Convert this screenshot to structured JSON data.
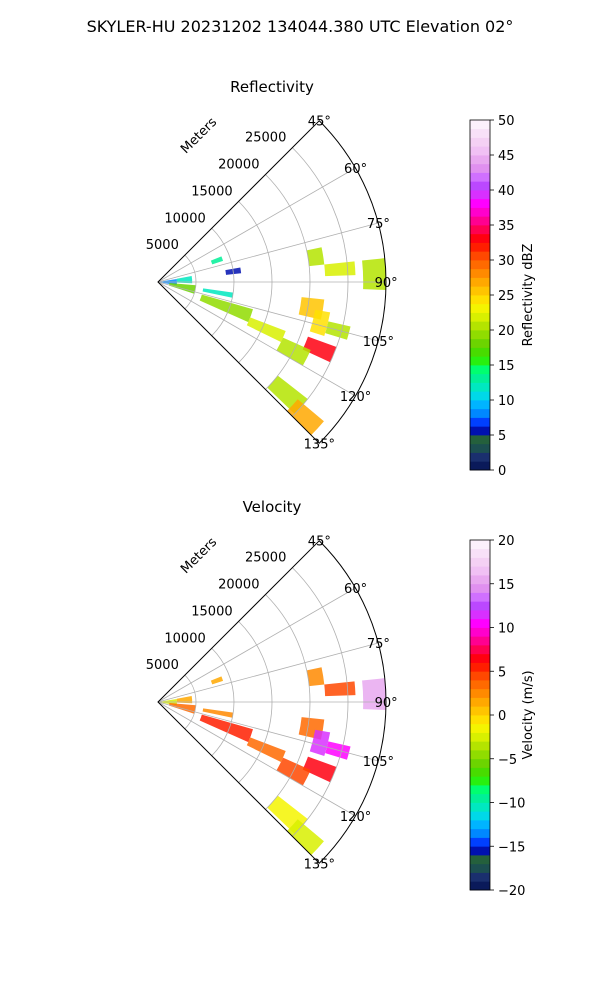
{
  "figure": {
    "suptitle": "SKYLER-HU  20231202  134044.380 UTC Elevation 02°"
  },
  "chart_data": [
    {
      "type": "polar_sector_radar",
      "title": "Reflectivity",
      "r_unit_label": "Meters",
      "r_ticks": [
        "5000",
        "10000",
        "15000",
        "20000",
        "25000"
      ],
      "theta_ticks": [
        "45°",
        "60°",
        "75°",
        "90°",
        "105°",
        "120°",
        "135°"
      ],
      "theta_range_deg": [
        45,
        135
      ],
      "r_range_m": [
        0,
        30000
      ],
      "grid": true,
      "colorbar": {
        "label": "Reflectivity dBZ",
        "range": [
          0,
          50
        ],
        "ticks": [
          "0",
          "5",
          "10",
          "15",
          "20",
          "25",
          "30",
          "35",
          "40",
          "45",
          "50"
        ],
        "colors": [
          "#0a1a5a",
          "#1a2f6e",
          "#1c4f50",
          "#24603c",
          "#0010b0",
          "#0040ff",
          "#0088ff",
          "#00b4ff",
          "#00d8e8",
          "#00e8c0",
          "#00f098",
          "#00ff70",
          "#28f010",
          "#48dc00",
          "#6cd400",
          "#90dc00",
          "#b4e400",
          "#d8f000",
          "#f4f400",
          "#ffe000",
          "#ffc400",
          "#ffa800",
          "#ff8a00",
          "#ff6a00",
          "#ff4800",
          "#ff1e00",
          "#ff0010",
          "#ff0050",
          "#ff0090",
          "#ff00cc",
          "#ff00ff",
          "#d830ff",
          "#bb48ff",
          "#d070ff",
          "#e090f0",
          "#e8a8f0",
          "#f0c0f4",
          "#f4d0f4",
          "#f8e0f8",
          "#fcf0fc"
        ]
      },
      "echo_regions": [
        {
          "theta": [
            81,
            100
          ],
          "r": [
            0,
            2500
          ],
          "value": 8
        },
        {
          "theta": [
            80,
            92
          ],
          "r": [
            2500,
            4500
          ],
          "value": 12
        },
        {
          "theta": [
            95,
            108
          ],
          "r": [
            1500,
            5000
          ],
          "value": 18
        },
        {
          "theta": [
            68,
            72
          ],
          "r": [
            7500,
            9000
          ],
          "value": 13
        },
        {
          "theta": [
            80,
            84
          ],
          "r": [
            9000,
            11000
          ],
          "value": 5
        },
        {
          "theta": [
            98,
            102
          ],
          "r": [
            6000,
            10000
          ],
          "value": 12
        },
        {
          "theta": [
            106,
            114
          ],
          "r": [
            6000,
            13000
          ],
          "value": 19
        },
        {
          "theta": [
            111,
            116
          ],
          "r": [
            13000,
            18000
          ],
          "value": 22
        },
        {
          "theta": [
            78,
            84
          ],
          "r": [
            20000,
            22000
          ],
          "value": 20
        },
        {
          "theta": [
            84,
            88
          ],
          "r": [
            22000,
            26000
          ],
          "value": 22
        },
        {
          "theta": [
            96,
            103
          ],
          "r": [
            19000,
            22000
          ],
          "value": 26
        },
        {
          "theta": [
            100,
            108
          ],
          "r": [
            21000,
            23000
          ],
          "value": 24
        },
        {
          "theta": [
            103,
            107
          ],
          "r": [
            23000,
            26000
          ],
          "value": 20
        },
        {
          "theta": [
            110,
            115
          ],
          "r": [
            21000,
            25000
          ],
          "value": 33
        },
        {
          "theta": [
            114,
            120
          ],
          "r": [
            18000,
            22000
          ],
          "value": 21
        },
        {
          "theta": [
            128,
            134
          ],
          "r": [
            20000,
            25000
          ],
          "value": 21
        },
        {
          "theta": [
            130,
            135
          ],
          "r": [
            24000,
            28500
          ],
          "value": 27
        },
        {
          "theta": [
            84,
            92
          ],
          "r": [
            27000,
            30000
          ],
          "value": 21
        }
      ]
    },
    {
      "type": "polar_sector_radar",
      "title": "Velocity",
      "r_unit_label": "Meters",
      "r_ticks": [
        "5000",
        "10000",
        "15000",
        "20000",
        "25000"
      ],
      "theta_ticks": [
        "45°",
        "60°",
        "75°",
        "90°",
        "105°",
        "120°",
        "135°"
      ],
      "theta_range_deg": [
        45,
        135
      ],
      "r_range_m": [
        0,
        30000
      ],
      "grid": true,
      "colorbar": {
        "label": "Velocity (m/s)",
        "range": [
          -20,
          20
        ],
        "ticks": [
          "−20",
          "−15",
          "−10",
          "−5",
          "0",
          "5",
          "10",
          "15",
          "20"
        ],
        "colors": [
          "#0a1a5a",
          "#1a2f6e",
          "#1c4f50",
          "#24603c",
          "#0010b0",
          "#0040ff",
          "#0088ff",
          "#00b4ff",
          "#00d8e8",
          "#00e8c0",
          "#00f098",
          "#00ff70",
          "#28f010",
          "#48dc00",
          "#6cd400",
          "#90dc00",
          "#b4e400",
          "#d8f000",
          "#f4f400",
          "#ffe000",
          "#ffc400",
          "#ffa800",
          "#ff8a00",
          "#ff6a00",
          "#ff4800",
          "#ff1e00",
          "#ff0010",
          "#ff0050",
          "#ff0090",
          "#ff00cc",
          "#ff00ff",
          "#d830ff",
          "#bb48ff",
          "#d070ff",
          "#e090f0",
          "#e8a8f0",
          "#f0c0f4",
          "#f4d0f4",
          "#f8e0f8",
          "#fcf0fc"
        ]
      },
      "echo_regions": [
        {
          "theta": [
            81,
            100
          ],
          "r": [
            0,
            2500
          ],
          "value": -3
        },
        {
          "theta": [
            80,
            92
          ],
          "r": [
            2500,
            4500
          ],
          "value": 1
        },
        {
          "theta": [
            95,
            108
          ],
          "r": [
            1500,
            5000
          ],
          "value": 3
        },
        {
          "theta": [
            68,
            72
          ],
          "r": [
            7500,
            9000
          ],
          "value": 1
        },
        {
          "theta": [
            98,
            102
          ],
          "r": [
            6000,
            10000
          ],
          "value": 2
        },
        {
          "theta": [
            106,
            114
          ],
          "r": [
            6000,
            13000
          ],
          "value": 5
        },
        {
          "theta": [
            111,
            116
          ],
          "r": [
            13000,
            18000
          ],
          "value": 3
        },
        {
          "theta": [
            78,
            84
          ],
          "r": [
            20000,
            22000
          ],
          "value": 2
        },
        {
          "theta": [
            84,
            88
          ],
          "r": [
            22000,
            26000
          ],
          "value": 4
        },
        {
          "theta": [
            96,
            103
          ],
          "r": [
            19000,
            22000
          ],
          "value": 3
        },
        {
          "theta": [
            100,
            108
          ],
          "r": [
            21000,
            23000
          ],
          "value": 11
        },
        {
          "theta": [
            103,
            107
          ],
          "r": [
            23000,
            26000
          ],
          "value": 10
        },
        {
          "theta": [
            110,
            115
          ],
          "r": [
            21000,
            25000
          ],
          "value": 6
        },
        {
          "theta": [
            114,
            120
          ],
          "r": [
            18000,
            22000
          ],
          "value": 4
        },
        {
          "theta": [
            128,
            134
          ],
          "r": [
            20000,
            25000
          ],
          "value": -2
        },
        {
          "theta": [
            130,
            135
          ],
          "r": [
            24000,
            28500
          ],
          "value": -3
        },
        {
          "theta": [
            84,
            92
          ],
          "r": [
            27000,
            30000
          ],
          "value": 15
        }
      ]
    }
  ]
}
